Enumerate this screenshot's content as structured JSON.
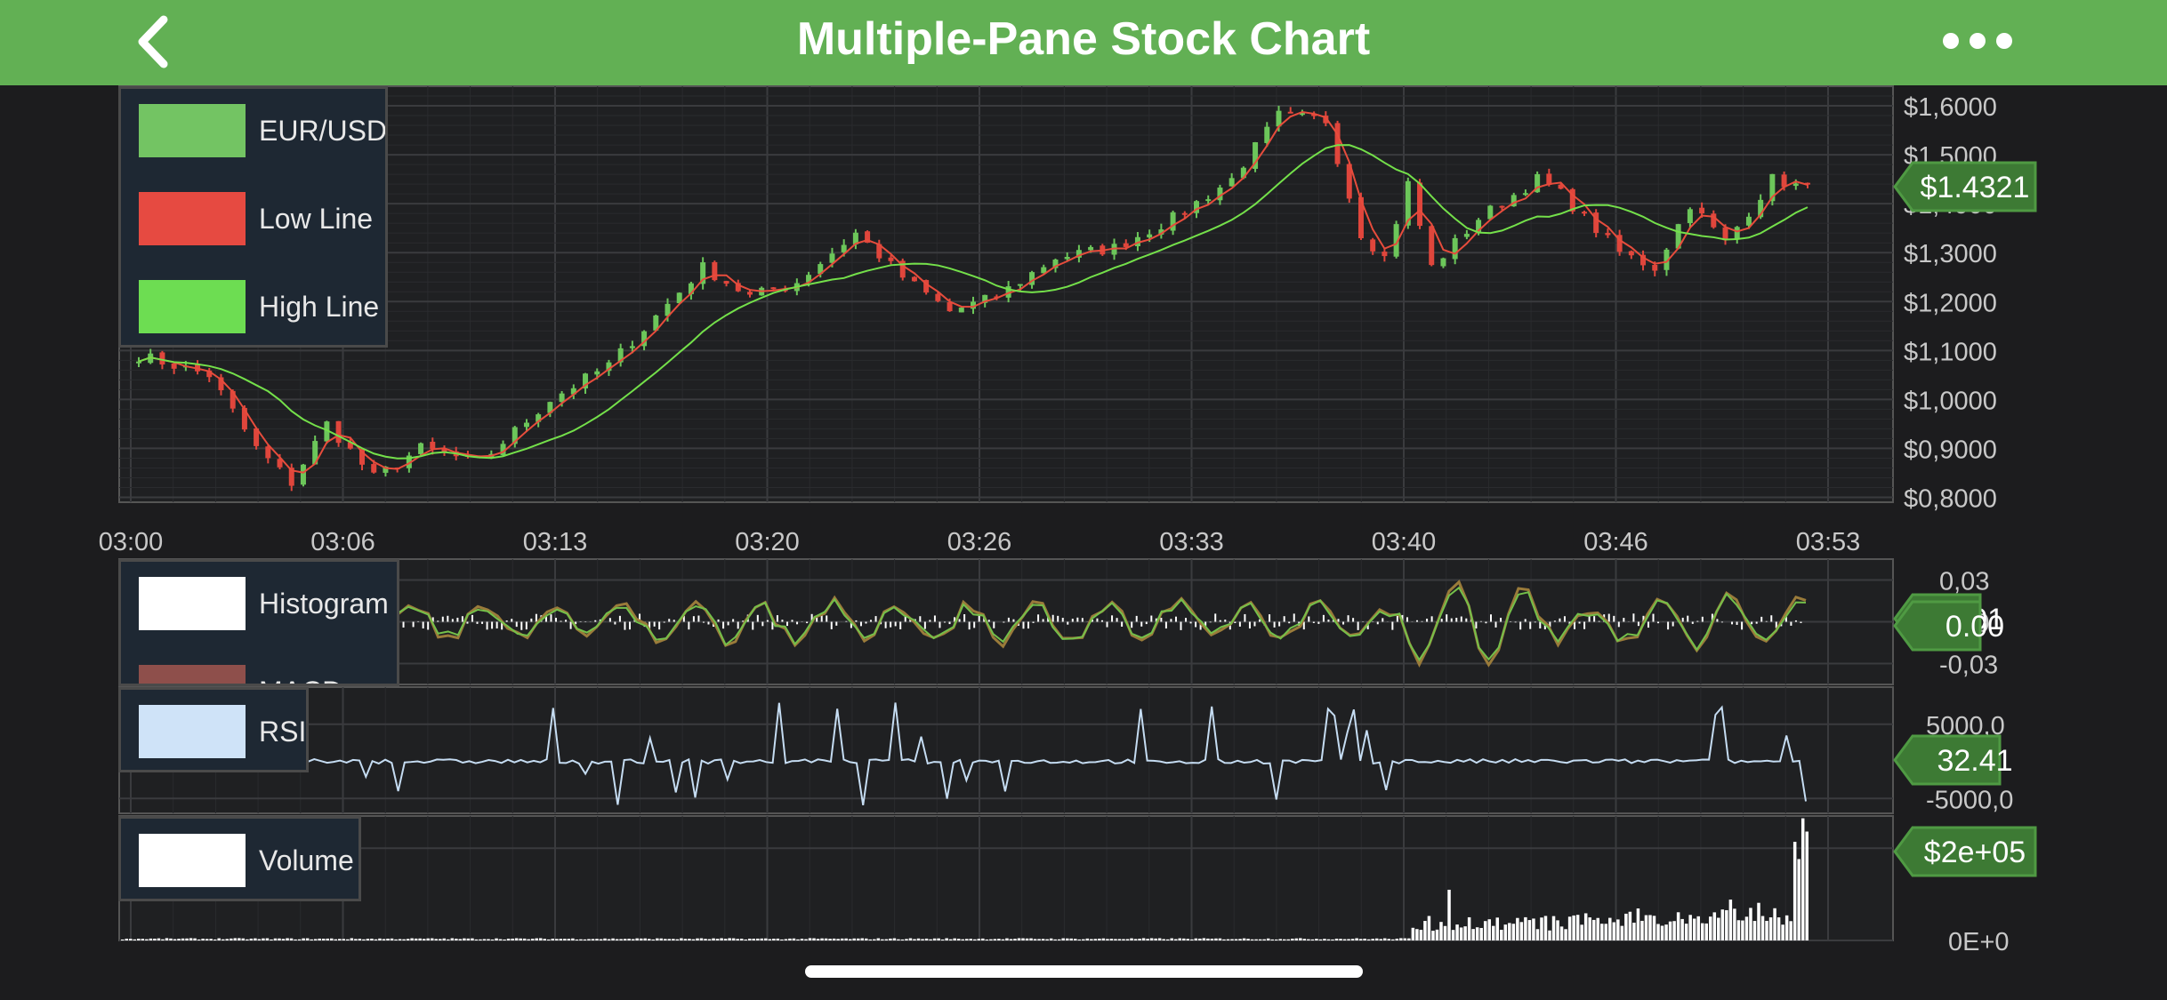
{
  "header": {
    "title": "Multiple-Pane Stock Chart"
  },
  "colors": {
    "header_bg": "#62b054",
    "background": "#1c1c1e",
    "up": "#6cc65a",
    "down": "#e0463c",
    "ma_fast": "#e74c3c",
    "ma_slow": "#74e04a",
    "macd_a": "#9a7b3a",
    "macd_b": "#74c04a",
    "rsi": "#c5dcf2",
    "volume": "#ffffff"
  },
  "icons": {
    "back": "chevron-left-icon",
    "more": "more-dots-icon"
  },
  "legends": {
    "price": [
      {
        "label": "EUR/USD",
        "color": "#73c463"
      },
      {
        "label": "Low Line",
        "color": "#e64a41"
      },
      {
        "label": "High Line",
        "color": "#6ddd52"
      }
    ],
    "macd": [
      {
        "label": "Histogram",
        "color": "#ffffff"
      },
      {
        "label": "MACD",
        "color": "#8e4f4b"
      }
    ],
    "rsi": [
      {
        "label": "RSI",
        "color": "#cfe3f8"
      }
    ],
    "volume": [
      {
        "label": "Volume",
        "color": "#ffffff"
      }
    ]
  },
  "chart_data": [
    {
      "type": "candlestick",
      "pane": "price",
      "x_ticks": [
        "03:00",
        "03:06",
        "03:13",
        "03:20",
        "03:26",
        "03:33",
        "03:40",
        "03:46",
        "03:53"
      ],
      "y_ticks": [
        "$1,6000",
        "$1,5000",
        "$1,4000",
        "$1,3000",
        "$1,2000",
        "$1,1000",
        "$1,0000",
        "$0,9000",
        "$0,8000"
      ],
      "ylim": [
        0.79,
        1.64
      ],
      "last_value_label": "$1.4321",
      "price_keypoints": [
        {
          "t": 0,
          "v": 1.09
        },
        {
          "t": 6,
          "v": 1.05
        },
        {
          "t": 10,
          "v": 0.9
        },
        {
          "t": 13,
          "v": 0.83
        },
        {
          "t": 16,
          "v": 0.95
        },
        {
          "t": 20,
          "v": 0.84
        },
        {
          "t": 24,
          "v": 0.9
        },
        {
          "t": 29,
          "v": 0.87
        },
        {
          "t": 35,
          "v": 1.0
        },
        {
          "t": 40,
          "v": 1.07
        },
        {
          "t": 44,
          "v": 1.17
        },
        {
          "t": 48,
          "v": 1.27
        },
        {
          "t": 52,
          "v": 1.21
        },
        {
          "t": 56,
          "v": 1.24
        },
        {
          "t": 61,
          "v": 1.34
        },
        {
          "t": 65,
          "v": 1.25
        },
        {
          "t": 69,
          "v": 1.18
        },
        {
          "t": 73,
          "v": 1.21
        },
        {
          "t": 78,
          "v": 1.29
        },
        {
          "t": 83,
          "v": 1.31
        },
        {
          "t": 88,
          "v": 1.37
        },
        {
          "t": 93,
          "v": 1.45
        },
        {
          "t": 97,
          "v": 1.58
        },
        {
          "t": 101,
          "v": 1.57
        },
        {
          "t": 104,
          "v": 1.34
        },
        {
          "t": 106,
          "v": 1.29
        },
        {
          "t": 108,
          "v": 1.44
        },
        {
          "t": 110,
          "v": 1.27
        },
        {
          "t": 114,
          "v": 1.37
        },
        {
          "t": 119,
          "v": 1.45
        },
        {
          "t": 121,
          "v": 1.42
        },
        {
          "t": 126,
          "v": 1.3
        },
        {
          "t": 129,
          "v": 1.27
        },
        {
          "t": 132,
          "v": 1.4
        },
        {
          "t": 135,
          "v": 1.32
        },
        {
          "t": 139,
          "v": 1.45
        },
        {
          "t": 142,
          "v": 1.43
        }
      ]
    },
    {
      "type": "line",
      "pane": "macd",
      "series": [
        {
          "name": "Histogram"
        },
        {
          "name": "MACD"
        }
      ],
      "y_ticks": [
        "0,03",
        "0,00",
        "-0,03"
      ],
      "ylim": [
        -0.045,
        0.045
      ],
      "last_value_labels": [
        "0.01",
        "0.00"
      ]
    },
    {
      "type": "line",
      "pane": "rsi",
      "series": [
        {
          "name": "RSI"
        }
      ],
      "y_ticks": [
        "5000,0",
        "-5000,0"
      ],
      "ylim": [
        -7000,
        10000
      ],
      "last_value_label": "32.41"
    },
    {
      "type": "bar",
      "pane": "volume",
      "series": [
        {
          "name": "Volume"
        }
      ],
      "y_ticks": [
        "2E+05",
        "0E+0"
      ],
      "ylim": [
        0,
        270000
      ],
      "last_value_label": "$2e+05"
    }
  ]
}
